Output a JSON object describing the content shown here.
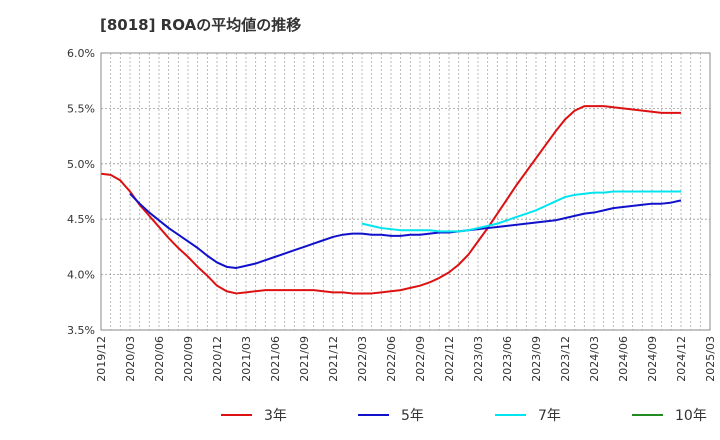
{
  "chart_data": {
    "type": "line",
    "title": "[8018]  ROAの平均値の推移",
    "xlabel": "",
    "ylabel": "",
    "ylim": [
      3.5,
      6.0
    ],
    "y_ticks": [
      "3.5%",
      "4.0%",
      "4.5%",
      "5.0%",
      "5.5%",
      "6.0%"
    ],
    "x_ticks": [
      "2019/12",
      "2020/03",
      "2020/06",
      "2020/09",
      "2020/12",
      "2021/03",
      "2021/06",
      "2021/09",
      "2021/12",
      "2022/03",
      "2022/06",
      "2022/09",
      "2022/12",
      "2023/03",
      "2023/06",
      "2023/09",
      "2023/12",
      "2024/03",
      "2024/06",
      "2024/09",
      "2024/12",
      "2025/03"
    ],
    "grid": true,
    "legend_position": "bottom",
    "series": [
      {
        "name": "3年",
        "color": "#dd1111",
        "points": [
          [
            "2019/12",
            4.91
          ],
          [
            "2020/01",
            4.9
          ],
          [
            "2020/02",
            4.85
          ],
          [
            "2020/03",
            4.75
          ],
          [
            "2020/04",
            4.63
          ],
          [
            "2020/05",
            4.53
          ],
          [
            "2020/06",
            4.43
          ],
          [
            "2020/07",
            4.33
          ],
          [
            "2020/08",
            4.24
          ],
          [
            "2020/09",
            4.16
          ],
          [
            "2020/10",
            4.07
          ],
          [
            "2020/11",
            3.99
          ],
          [
            "2020/12",
            3.9
          ],
          [
            "2021/01",
            3.85
          ],
          [
            "2021/02",
            3.83
          ],
          [
            "2021/03",
            3.84
          ],
          [
            "2021/04",
            3.85
          ],
          [
            "2021/05",
            3.86
          ],
          [
            "2021/06",
            3.86
          ],
          [
            "2021/07",
            3.86
          ],
          [
            "2021/08",
            3.86
          ],
          [
            "2021/09",
            3.86
          ],
          [
            "2021/10",
            3.86
          ],
          [
            "2021/11",
            3.85
          ],
          [
            "2021/12",
            3.84
          ],
          [
            "2022/01",
            3.84
          ],
          [
            "2022/02",
            3.83
          ],
          [
            "2022/03",
            3.83
          ],
          [
            "2022/04",
            3.83
          ],
          [
            "2022/05",
            3.84
          ],
          [
            "2022/06",
            3.85
          ],
          [
            "2022/07",
            3.86
          ],
          [
            "2022/08",
            3.88
          ],
          [
            "2022/09",
            3.9
          ],
          [
            "2022/10",
            3.93
          ],
          [
            "2022/11",
            3.97
          ],
          [
            "2022/12",
            4.02
          ],
          [
            "2023/01",
            4.09
          ],
          [
            "2023/02",
            4.18
          ],
          [
            "2023/03",
            4.3
          ],
          [
            "2023/04",
            4.42
          ],
          [
            "2023/05",
            4.55
          ],
          [
            "2023/06",
            4.68
          ],
          [
            "2023/07",
            4.81
          ],
          [
            "2023/08",
            4.93
          ],
          [
            "2023/09",
            5.05
          ],
          [
            "2023/10",
            5.17
          ],
          [
            "2023/11",
            5.29
          ],
          [
            "2023/12",
            5.4
          ],
          [
            "2024/01",
            5.48
          ],
          [
            "2024/02",
            5.52
          ],
          [
            "2024/03",
            5.52
          ],
          [
            "2024/04",
            5.52
          ],
          [
            "2024/05",
            5.51
          ],
          [
            "2024/06",
            5.5
          ],
          [
            "2024/07",
            5.49
          ],
          [
            "2024/08",
            5.48
          ],
          [
            "2024/09",
            5.47
          ],
          [
            "2024/10",
            5.46
          ],
          [
            "2024/11",
            5.46
          ],
          [
            "2024/12",
            5.46
          ]
        ]
      },
      {
        "name": "5年",
        "color": "#1111cc",
        "points": [
          [
            "2020/03",
            4.73
          ],
          [
            "2020/04",
            4.64
          ],
          [
            "2020/05",
            4.56
          ],
          [
            "2020/06",
            4.49
          ],
          [
            "2020/07",
            4.42
          ],
          [
            "2020/08",
            4.36
          ],
          [
            "2020/09",
            4.3
          ],
          [
            "2020/10",
            4.24
          ],
          [
            "2020/11",
            4.17
          ],
          [
            "2020/12",
            4.11
          ],
          [
            "2021/01",
            4.07
          ],
          [
            "2021/02",
            4.06
          ],
          [
            "2021/03",
            4.08
          ],
          [
            "2021/04",
            4.1
          ],
          [
            "2021/05",
            4.13
          ],
          [
            "2021/06",
            4.16
          ],
          [
            "2021/07",
            4.19
          ],
          [
            "2021/08",
            4.22
          ],
          [
            "2021/09",
            4.25
          ],
          [
            "2021/10",
            4.28
          ],
          [
            "2021/11",
            4.31
          ],
          [
            "2021/12",
            4.34
          ],
          [
            "2022/01",
            4.36
          ],
          [
            "2022/02",
            4.37
          ],
          [
            "2022/03",
            4.37
          ],
          [
            "2022/04",
            4.36
          ],
          [
            "2022/05",
            4.36
          ],
          [
            "2022/06",
            4.35
          ],
          [
            "2022/07",
            4.35
          ],
          [
            "2022/08",
            4.36
          ],
          [
            "2022/09",
            4.36
          ],
          [
            "2022/10",
            4.37
          ],
          [
            "2022/11",
            4.38
          ],
          [
            "2022/12",
            4.38
          ],
          [
            "2023/01",
            4.39
          ],
          [
            "2023/02",
            4.4
          ],
          [
            "2023/03",
            4.41
          ],
          [
            "2023/04",
            4.42
          ],
          [
            "2023/05",
            4.43
          ],
          [
            "2023/06",
            4.44
          ],
          [
            "2023/07",
            4.45
          ],
          [
            "2023/08",
            4.46
          ],
          [
            "2023/09",
            4.47
          ],
          [
            "2023/10",
            4.48
          ],
          [
            "2023/11",
            4.49
          ],
          [
            "2023/12",
            4.51
          ],
          [
            "2024/01",
            4.53
          ],
          [
            "2024/02",
            4.55
          ],
          [
            "2024/03",
            4.56
          ],
          [
            "2024/04",
            4.58
          ],
          [
            "2024/05",
            4.6
          ],
          [
            "2024/06",
            4.61
          ],
          [
            "2024/07",
            4.62
          ],
          [
            "2024/08",
            4.63
          ],
          [
            "2024/09",
            4.64
          ],
          [
            "2024/10",
            4.64
          ],
          [
            "2024/11",
            4.65
          ],
          [
            "2024/12",
            4.67
          ]
        ]
      },
      {
        "name": "7年",
        "color": "#00e5ee",
        "points": [
          [
            "2022/03",
            4.46
          ],
          [
            "2022/04",
            4.44
          ],
          [
            "2022/05",
            4.42
          ],
          [
            "2022/06",
            4.41
          ],
          [
            "2022/07",
            4.4
          ],
          [
            "2022/08",
            4.4
          ],
          [
            "2022/09",
            4.4
          ],
          [
            "2022/10",
            4.4
          ],
          [
            "2022/11",
            4.39
          ],
          [
            "2022/12",
            4.39
          ],
          [
            "2023/01",
            4.39
          ],
          [
            "2023/02",
            4.4
          ],
          [
            "2023/03",
            4.42
          ],
          [
            "2023/04",
            4.44
          ],
          [
            "2023/05",
            4.46
          ],
          [
            "2023/06",
            4.49
          ],
          [
            "2023/07",
            4.52
          ],
          [
            "2023/08",
            4.55
          ],
          [
            "2023/09",
            4.58
          ],
          [
            "2023/10",
            4.62
          ],
          [
            "2023/11",
            4.66
          ],
          [
            "2023/12",
            4.7
          ],
          [
            "2024/01",
            4.72
          ],
          [
            "2024/02",
            4.73
          ],
          [
            "2024/03",
            4.74
          ],
          [
            "2024/04",
            4.74
          ],
          [
            "2024/05",
            4.75
          ],
          [
            "2024/06",
            4.75
          ],
          [
            "2024/07",
            4.75
          ],
          [
            "2024/08",
            4.75
          ],
          [
            "2024/09",
            4.75
          ],
          [
            "2024/10",
            4.75
          ],
          [
            "2024/11",
            4.75
          ],
          [
            "2024/12",
            4.75
          ]
        ]
      },
      {
        "name": "10年",
        "color": "#228b22",
        "points": []
      }
    ]
  }
}
